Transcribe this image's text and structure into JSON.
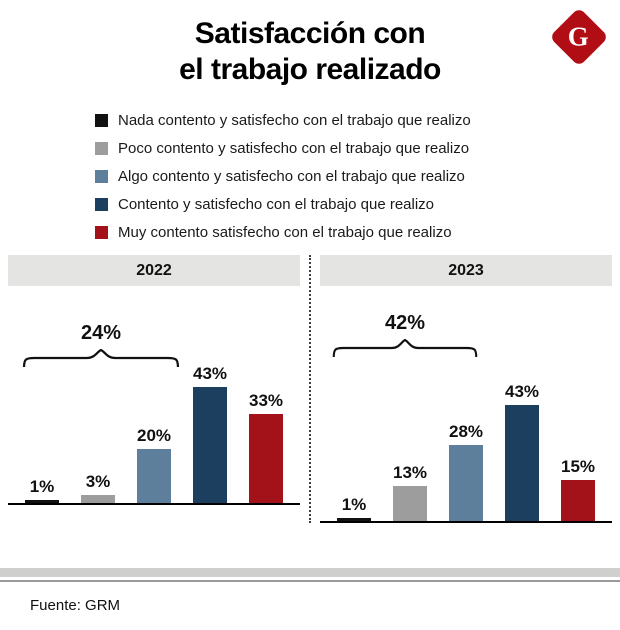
{
  "title": {
    "line1": "Satisfacción con",
    "line2": "el trabajo realizado"
  },
  "logo": {
    "letter": "G",
    "color": "#b00d15"
  },
  "legend": {
    "items": [
      {
        "label": "Nada contento y satisfecho con el trabajo que realizo",
        "color": "#111111"
      },
      {
        "label": "Poco contento y satisfecho con el trabajo que realizo",
        "color": "#9d9d9d"
      },
      {
        "label": "Algo contento y satisfecho con el trabajo que realizo",
        "color": "#5e7f9b"
      },
      {
        "label": "Contento y satisfecho con el trabajo que realizo",
        "color": "#1d3f5f"
      },
      {
        "label": "Muy contento satisfecho con el trabajo que realizo",
        "color": "#a31218"
      }
    ]
  },
  "chart_data": {
    "type": "bar",
    "title": "Satisfacción con el trabajo realizado",
    "categories": [
      "Nada contento y satisfecho con el trabajo que realizo",
      "Poco contento y satisfecho con el trabajo que realizo",
      "Algo contento y satisfecho con el trabajo que realizo",
      "Contento y satisfecho con el trabajo que realizo",
      "Muy contento satisfecho con el trabajo que realizo"
    ],
    "colors": [
      "#111111",
      "#9d9d9d",
      "#5e7f9b",
      "#1d3f5f",
      "#a31218"
    ],
    "ylim": [
      0,
      50
    ],
    "grid": false,
    "legend_position": "top-left",
    "panels": [
      {
        "title": "2022",
        "values": [
          1,
          3,
          20,
          43,
          33
        ],
        "labels": [
          "1%",
          "3%",
          "20%",
          "43%",
          "33%"
        ],
        "bracket": {
          "label": "24%",
          "covers_bars": [
            0,
            1,
            2
          ]
        }
      },
      {
        "title": "2023",
        "values": [
          1,
          13,
          28,
          43,
          15
        ],
        "labels": [
          "1%",
          "13%",
          "28%",
          "43%",
          "15%"
        ],
        "bracket": {
          "label": "42%",
          "covers_bars": [
            0,
            1,
            2
          ]
        }
      }
    ]
  },
  "footer": {
    "source": "Fuente: GRM"
  }
}
